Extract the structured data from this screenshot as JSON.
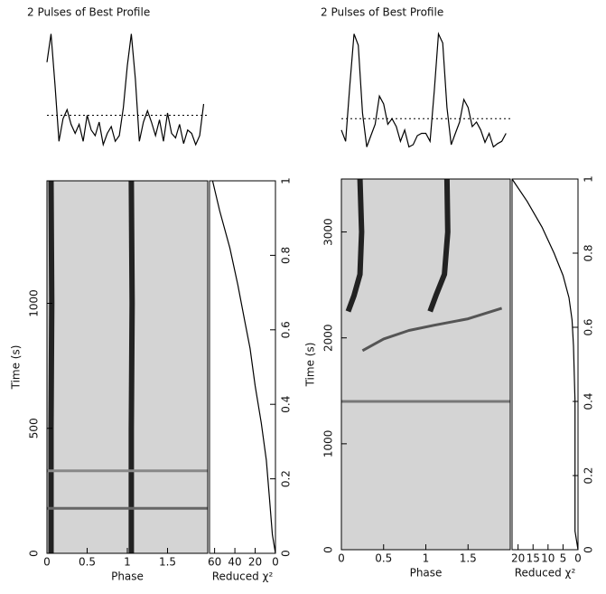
{
  "chart_data": [
    {
      "type": "pulse-fold",
      "title": "2 Pulses of Best Profile",
      "profile": {
        "x": [
          0,
          0.05,
          0.1,
          0.15,
          0.2,
          0.25,
          0.3,
          0.35,
          0.4,
          0.45,
          0.5,
          0.55,
          0.6,
          0.65,
          0.7,
          0.75,
          0.8,
          0.85,
          0.9,
          0.95,
          1,
          1.05,
          1.1,
          1.15,
          1.2,
          1.25,
          1.3,
          1.35,
          1.4,
          1.45,
          1.5,
          1.55,
          1.6,
          1.65,
          1.7,
          1.75,
          1.8,
          1.85,
          1.9,
          1.95
        ],
        "values": [
          0.75,
          1.0,
          0.55,
          0.05,
          0.25,
          0.33,
          0.2,
          0.12,
          0.2,
          0.05,
          0.28,
          0.15,
          0.1,
          0.22,
          0.02,
          0.12,
          0.18,
          0.05,
          0.1,
          0.35,
          0.72,
          1.0,
          0.6,
          0.05,
          0.22,
          0.32,
          0.22,
          0.1,
          0.24,
          0.05,
          0.3,
          0.12,
          0.08,
          0.2,
          0.03,
          0.15,
          0.12,
          0.02,
          0.1,
          0.38
        ],
        "ylim": [
          -0.1,
          1.1
        ],
        "baseline": 0.28
      },
      "image": {
        "xlabel": "Phase",
        "ylabel": "Time (s)",
        "xlim": [
          0,
          2
        ],
        "ylim": [
          0,
          1490
        ],
        "xticks": [
          0,
          0.5,
          1,
          1.5
        ],
        "yticks": [
          0,
          500,
          1000
        ],
        "tracks": [
          {
            "color": "#222",
            "x": [
              0.05,
              0.05,
              0.06,
              0.05
            ],
            "y": [
              0,
              500,
              1000,
              1490
            ]
          },
          {
            "color": "#222",
            "x": [
              1.05,
              1.05,
              1.06,
              1.05
            ],
            "y": [
              0,
              500,
              1000,
              1490
            ]
          },
          {
            "color": "#666",
            "x": [
              0,
              2
            ],
            "y": [
              180,
              180
            ]
          },
          {
            "color": "#888",
            "x": [
              0,
              2
            ],
            "y": [
              330,
              330
            ]
          }
        ]
      },
      "chi2": {
        "xlabel": "Reduced χ²",
        "xlim": [
          65,
          0
        ],
        "xticks": [
          60,
          40,
          20,
          0
        ],
        "fraction_lim": [
          0,
          1
        ],
        "fraction_ticks": [
          0,
          0.2,
          0.4,
          0.6,
          0.8,
          1
        ],
        "values": [
          0,
          3,
          6,
          9,
          14,
          20,
          25,
          30,
          37,
          45,
          55,
          62
        ],
        "fraction": [
          0,
          0.05,
          0.15,
          0.25,
          0.35,
          0.45,
          0.55,
          0.62,
          0.72,
          0.82,
          0.92,
          1
        ]
      }
    },
    {
      "type": "pulse-fold",
      "title": "2 Pulses of Best Profile",
      "profile": {
        "x": [
          0,
          0.05,
          0.1,
          0.15,
          0.2,
          0.25,
          0.3,
          0.35,
          0.4,
          0.45,
          0.5,
          0.55,
          0.6,
          0.65,
          0.7,
          0.75,
          0.8,
          0.85,
          0.9,
          0.95,
          1,
          1.05,
          1.1,
          1.15,
          1.2,
          1.25,
          1.3,
          1.35,
          1.4,
          1.45,
          1.5,
          1.55,
          1.6,
          1.65,
          1.7,
          1.75,
          1.8,
          1.85,
          1.9,
          1.95
        ],
        "values": [
          0.15,
          0.05,
          0.55,
          1.0,
          0.9,
          0.3,
          0.0,
          0.1,
          0.2,
          0.45,
          0.38,
          0.2,
          0.25,
          0.18,
          0.05,
          0.15,
          0.0,
          0.02,
          0.1,
          0.12,
          0.12,
          0.05,
          0.5,
          1.0,
          0.92,
          0.35,
          0.02,
          0.12,
          0.22,
          0.42,
          0.35,
          0.18,
          0.22,
          0.15,
          0.04,
          0.12,
          0.0,
          0.03,
          0.05,
          0.12
        ],
        "ylim": [
          -0.1,
          1.1
        ],
        "baseline": 0.25
      },
      "image": {
        "xlabel": "Phase",
        "ylabel": "Time (s)",
        "xlim": [
          0,
          2
        ],
        "ylim": [
          0,
          3500
        ],
        "xticks": [
          0,
          0.5,
          1,
          1.5
        ],
        "yticks": [
          0,
          1000,
          2000,
          3000
        ],
        "tracks": [
          {
            "color": "#222",
            "x": [
              0.22,
              0.24,
              0.22,
              0.15,
              0.08
            ],
            "y": [
              3500,
              3000,
              2600,
              2400,
              2250
            ]
          },
          {
            "color": "#222",
            "x": [
              1.25,
              1.26,
              1.22,
              1.12,
              1.05
            ],
            "y": [
              3500,
              3000,
              2600,
              2400,
              2250
            ]
          },
          {
            "color": "#555",
            "x": [
              0.25,
              0.5,
              0.8,
              1.1,
              1.5,
              1.9
            ],
            "y": [
              1880,
              1990,
              2070,
              2120,
              2180,
              2280
            ]
          },
          {
            "color": "#777",
            "x": [
              0,
              2
            ],
            "y": [
              1400,
              1400
            ]
          }
        ]
      },
      "chi2": {
        "xlabel": "Reduced χ²",
        "xlim": [
          22,
          0
        ],
        "xticks": [
          20,
          15,
          10,
          5,
          0
        ],
        "fraction_lim": [
          0,
          1
        ],
        "fraction_ticks": [
          0,
          0.2,
          0.4,
          0.6,
          0.8,
          1
        ],
        "values": [
          0,
          1,
          1,
          1,
          1.5,
          2,
          3,
          5,
          8,
          12,
          17,
          22
        ],
        "fraction": [
          0,
          0.05,
          0.2,
          0.4,
          0.55,
          0.62,
          0.68,
          0.74,
          0.8,
          0.87,
          0.94,
          1
        ]
      }
    }
  ]
}
